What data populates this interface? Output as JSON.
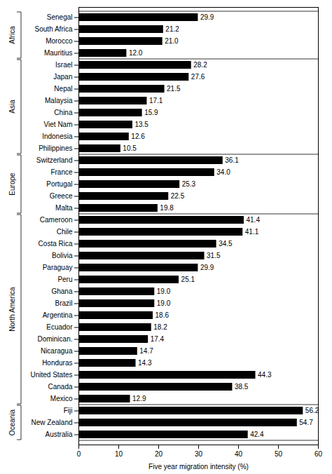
{
  "chart_data": {
    "type": "bar",
    "orientation": "horizontal",
    "categories": [
      "Senegal",
      "South Africa",
      "Morocco",
      "Mauritius",
      "Israel",
      "Japan",
      "Nepal",
      "Malaysia",
      "China",
      "Viet Nam",
      "Indonesia",
      "Philippines",
      "Switzerland",
      "France",
      "Portugal",
      "Greece",
      "Malta",
      "Cameroon",
      "Chile",
      "Costa Rica",
      "Bolivia",
      "Paraguay",
      "Peru",
      "Ghana",
      "Brazil",
      "Argentina",
      "Ecuador",
      "Dominican.",
      "Nicaragua",
      "Honduras",
      "United States",
      "Canada",
      "Mexico",
      "Fiji",
      "New Zealand",
      "Australia"
    ],
    "values": [
      29.9,
      21.2,
      21.0,
      12.0,
      28.2,
      27.6,
      21.5,
      17.1,
      15.9,
      13.5,
      12.6,
      10.5,
      36.1,
      34.0,
      25.3,
      22.5,
      19.8,
      41.4,
      41.1,
      34.5,
      31.5,
      29.9,
      25.1,
      19.0,
      19.0,
      18.6,
      18.2,
      17.4,
      14.7,
      14.3,
      44.3,
      38.5,
      12.9,
      56.2,
      54.7,
      42.4
    ],
    "value_labels": [
      "29.9",
      "21.2",
      "21.0",
      "12.0",
      "28.2",
      "27.6",
      "21.5",
      "17.1",
      "15.9",
      "13.5",
      "12.6",
      "10.5",
      "36.1",
      "34.0",
      "25.3",
      "22.5",
      "19.8",
      "41.4",
      "41.1",
      "34.5",
      "31.5",
      "29.9",
      "25.1",
      "19.0",
      "19.0",
      "18.6",
      "18.2",
      "17.4",
      "14.7",
      "14.3",
      "44.3",
      "38.5",
      "12.9",
      "56.2",
      "54.7",
      "42.4"
    ],
    "data_labels": true,
    "color": "#000000",
    "xlabel": "Five year migration intensity (%)",
    "xlim": [
      0,
      60
    ],
    "xticks": [
      0,
      10,
      20,
      30,
      40,
      50,
      60
    ],
    "groups": [
      {
        "name": "Africa",
        "start": 0,
        "count": 4
      },
      {
        "name": "Asia",
        "start": 4,
        "count": 8
      },
      {
        "name": "Europe",
        "start": 12,
        "count": 5
      },
      {
        "name": "North America",
        "start": 17,
        "count": 16
      },
      {
        "name": "Oceania",
        "start": 33,
        "count": 3
      }
    ]
  }
}
